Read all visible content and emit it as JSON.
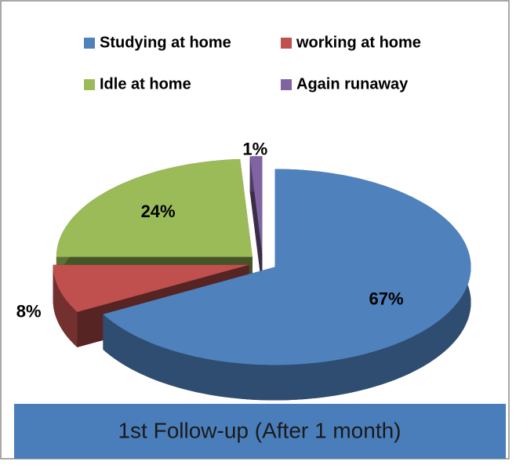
{
  "chart_data": {
    "type": "pie3d",
    "title": "1st Follow-up (After 1 month)",
    "categories": [
      "Studying at home",
      "working at home",
      "Idle at home",
      "Again runaway"
    ],
    "values": [
      67,
      8,
      24,
      1
    ],
    "value_labels": [
      "67%",
      "8%",
      "24%",
      "1%"
    ],
    "colors": [
      "#4f81bd",
      "#c0504d",
      "#9bbb59",
      "#8064a2"
    ],
    "legend": "top"
  }
}
